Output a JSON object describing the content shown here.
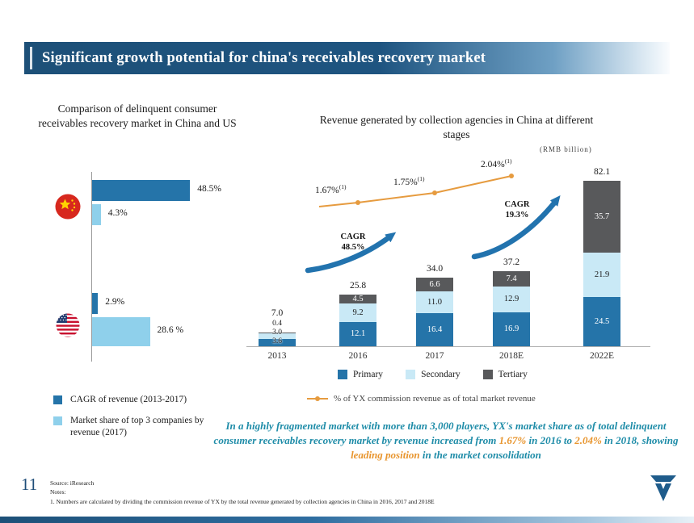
{
  "slide": {
    "title": "Significant growth potential for china's receivables recovery market"
  },
  "colors": {
    "primary": "#2574A9",
    "secondary": "#C9E9F6",
    "light_blue": "#8FD0EB",
    "tertiary": "#58595B",
    "orange": "#E69B3F",
    "teal": "#1E8CA8",
    "banner": "#1D5078",
    "accent_blue": "#2273AE"
  },
  "chart_data": [
    {
      "type": "bar",
      "orientation": "horizontal",
      "title": "Comparison of delinquent consumer receivables recovery market in China and US",
      "categories": [
        "China",
        "US"
      ],
      "series": [
        {
          "name": "CAGR of revenue (2013-2017)",
          "values": [
            48.5,
            2.9
          ],
          "labels": [
            "48.5%",
            "2.9%"
          ]
        },
        {
          "name": "Market share of top 3 companies by revenue (2017)",
          "values": [
            4.3,
            28.6
          ],
          "labels": [
            "4.3%",
            "28.6 %"
          ]
        }
      ],
      "unit": "%",
      "legend_position": "bottom-left"
    },
    {
      "type": "bar",
      "stacked": true,
      "title": "Revenue generated by collection agencies in China at different stages",
      "unit_label": "(RMB billion)",
      "categories": [
        "2013",
        "2016",
        "2017",
        "2018E",
        "2022E"
      ],
      "series": [
        {
          "name": "Primary",
          "values": [
            3.6,
            12.1,
            16.4,
            16.9,
            24.5
          ]
        },
        {
          "name": "Secondary",
          "values": [
            3.0,
            9.2,
            11.0,
            12.9,
            21.9
          ]
        },
        {
          "name": "Tertiary",
          "values": [
            0.4,
            4.5,
            6.6,
            7.4,
            35.7
          ]
        }
      ],
      "totals": [
        7.0,
        25.8,
        34.0,
        37.2,
        82.1
      ],
      "line": {
        "legend": "% of YX commission revenue as of total market revenue",
        "points": [
          {
            "x": "2016",
            "label": "1.67%",
            "note": "(1)"
          },
          {
            "x": "2017",
            "label": "1.75%",
            "note": "(1)"
          },
          {
            "x": "2018E",
            "label": "2.04%",
            "note": "(1)"
          }
        ]
      },
      "annotations": [
        {
          "text_top": "CAGR",
          "text_bottom": "48.5%"
        },
        {
          "text_top": "CAGR",
          "text_bottom": "19.3%"
        }
      ],
      "legend_position": "bottom"
    }
  ],
  "insight": {
    "segments": [
      {
        "t": "In a highly fragmented market with more than 3,000 players, YX's market share as of total delinquent consumer receivables recovery market by revenue increased from ",
        "hl": false
      },
      {
        "t": "1.67%",
        "hl": true
      },
      {
        "t": " in 2016 to ",
        "hl": false
      },
      {
        "t": "2.04%",
        "hl": true
      },
      {
        "t": " in 2018, showing ",
        "hl": false
      },
      {
        "t": "leading position",
        "hl": true
      },
      {
        "t": " in the market consolidation",
        "hl": false
      }
    ]
  },
  "footer": {
    "page_number": "11",
    "source": "Source: iResearch",
    "notes_label": "Notes:",
    "note1": "1. Numbers are calculated by dividing the commission revenue of YX by the total revenue generated by collection agencies in China in 2016, 2017 and 2018E"
  }
}
